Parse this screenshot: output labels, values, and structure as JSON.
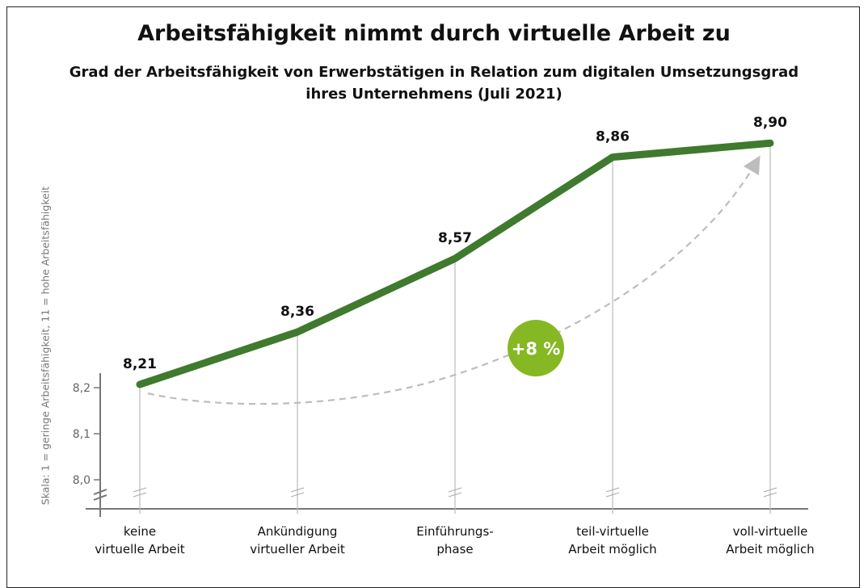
{
  "chart_data": {
    "type": "line",
    "title": "Arbeitsfähigkeit nimmt durch virtuelle Arbeit zu",
    "subtitle_lines": [
      "Grad der Arbeitsfähigkeit von Erwerbstätigen in Relation zum digitalen Umsetzungsgrad",
      "ihres Unternehmens (Juli 2021)"
    ],
    "ylabel": "Skala: 1 = geringe Arbeitsfähigkeit, 11 = hohe Arbeitsfähigkeit",
    "yticks": [
      "8,0",
      "8,1",
      "8,2"
    ],
    "y_axis_break": true,
    "categories": [
      [
        "keine",
        "virtuelle Arbeit"
      ],
      [
        "Ankündigung",
        "virtueller Arbeit"
      ],
      [
        "Einführungs-",
        "phase"
      ],
      [
        "teil-virtuelle",
        "Arbeit möglich"
      ],
      [
        "voll-virtuelle",
        "Arbeit möglich"
      ]
    ],
    "values": [
      8.21,
      8.36,
      8.57,
      8.86,
      8.9
    ],
    "data_labels": [
      "8,21",
      "8,36",
      "8,57",
      "8,86",
      "8,90"
    ],
    "annotation": "+8 %",
    "grid": false,
    "colors": {
      "line": "#3f7a2e",
      "badge": "#86b824",
      "arrow": "#bdbdbd"
    }
  }
}
